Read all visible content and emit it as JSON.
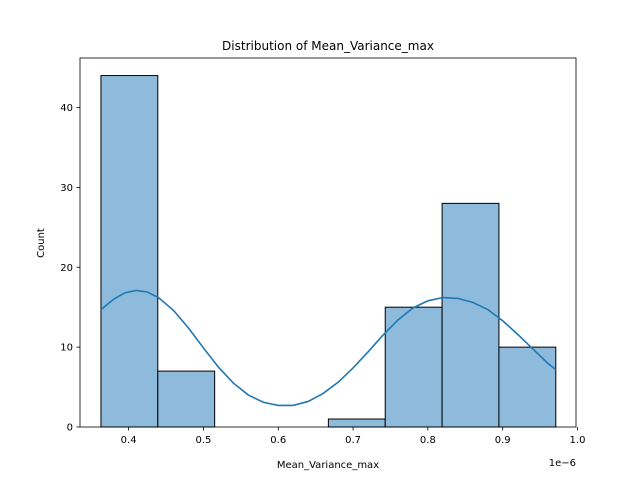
{
  "chart_data": {
    "type": "bar",
    "title": "Distribution of Mean_Variance_max",
    "xlabel": "Mean_Variance_max",
    "ylabel": "Count",
    "x_offset_label": "1e−6",
    "xlim": [
      0.335,
      0.998
    ],
    "ylim": [
      0,
      46.2
    ],
    "x_ticks": [
      0.4,
      0.5,
      0.6,
      0.7,
      0.8,
      0.9,
      1.0
    ],
    "x_tick_labels": [
      "0.4",
      "0.5",
      "0.6",
      "0.7",
      "0.8",
      "0.9",
      "1.0"
    ],
    "y_ticks": [
      0,
      10,
      20,
      30,
      40
    ],
    "y_tick_labels": [
      "0",
      "10",
      "20",
      "30",
      "40"
    ],
    "grid": false,
    "bins": [
      {
        "x0": 0.363,
        "x1": 0.439,
        "count": 44
      },
      {
        "x0": 0.439,
        "x1": 0.515,
        "count": 7
      },
      {
        "x0": 0.515,
        "x1": 0.591,
        "count": 0
      },
      {
        "x0": 0.591,
        "x1": 0.667,
        "count": 0
      },
      {
        "x0": 0.667,
        "x1": 0.743,
        "count": 1
      },
      {
        "x0": 0.743,
        "x1": 0.819,
        "count": 15
      },
      {
        "x0": 0.819,
        "x1": 0.895,
        "count": 28
      },
      {
        "x0": 0.895,
        "x1": 0.971,
        "count": 10
      }
    ],
    "kde": {
      "x": [
        0.363,
        0.38,
        0.395,
        0.41,
        0.425,
        0.44,
        0.46,
        0.48,
        0.5,
        0.52,
        0.54,
        0.56,
        0.58,
        0.6,
        0.62,
        0.64,
        0.66,
        0.68,
        0.7,
        0.72,
        0.74,
        0.76,
        0.78,
        0.8,
        0.82,
        0.84,
        0.86,
        0.88,
        0.9,
        0.92,
        0.94,
        0.96,
        0.971
      ],
      "y": [
        14.7,
        16.0,
        16.8,
        17.1,
        16.9,
        16.2,
        14.6,
        12.4,
        9.9,
        7.5,
        5.5,
        4.0,
        3.1,
        2.7,
        2.7,
        3.2,
        4.2,
        5.6,
        7.4,
        9.4,
        11.5,
        13.4,
        14.9,
        15.8,
        16.2,
        16.1,
        15.6,
        14.7,
        13.3,
        11.6,
        9.8,
        8.0,
        7.2
      ]
    },
    "colors": {
      "bar_fill": "#8ebbdc",
      "bar_edge": "#000000",
      "kde_line": "#1f77b4"
    }
  }
}
